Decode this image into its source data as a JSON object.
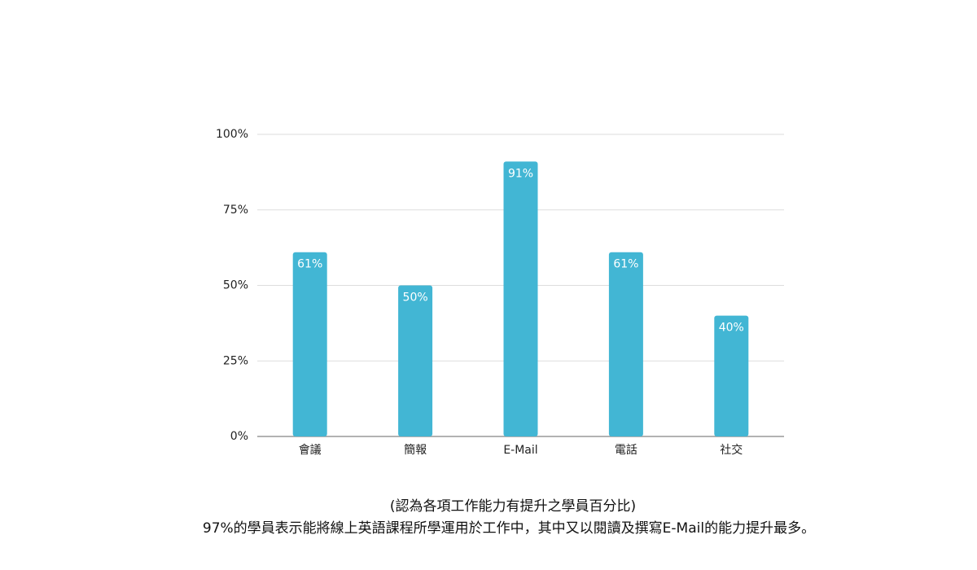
{
  "chart_data": {
    "type": "bar",
    "categories": [
      "會議",
      "簡報",
      "E-Mail",
      "電話",
      "社交"
    ],
    "values": [
      61,
      50,
      91,
      61,
      40
    ],
    "value_labels": [
      "61%",
      "50%",
      "91%",
      "61%",
      "40%"
    ],
    "color": "#42b6d4",
    "ylim": [
      0,
      100
    ],
    "yticks": [
      {
        "value": 0,
        "label": "0%"
      },
      {
        "value": 25,
        "label": "25%"
      },
      {
        "value": 50,
        "label": "50%"
      },
      {
        "value": 75,
        "label": "75%"
      },
      {
        "value": 100,
        "label": "100%"
      }
    ],
    "grid": true,
    "annotations": [
      "(認為各項工作能力有提升之學員百分比)",
      "97%的學員表示能將線上英語課程所學運用於工作中，其中又以閱讀及撰寫E-Mail的能力提升最多。"
    ]
  }
}
